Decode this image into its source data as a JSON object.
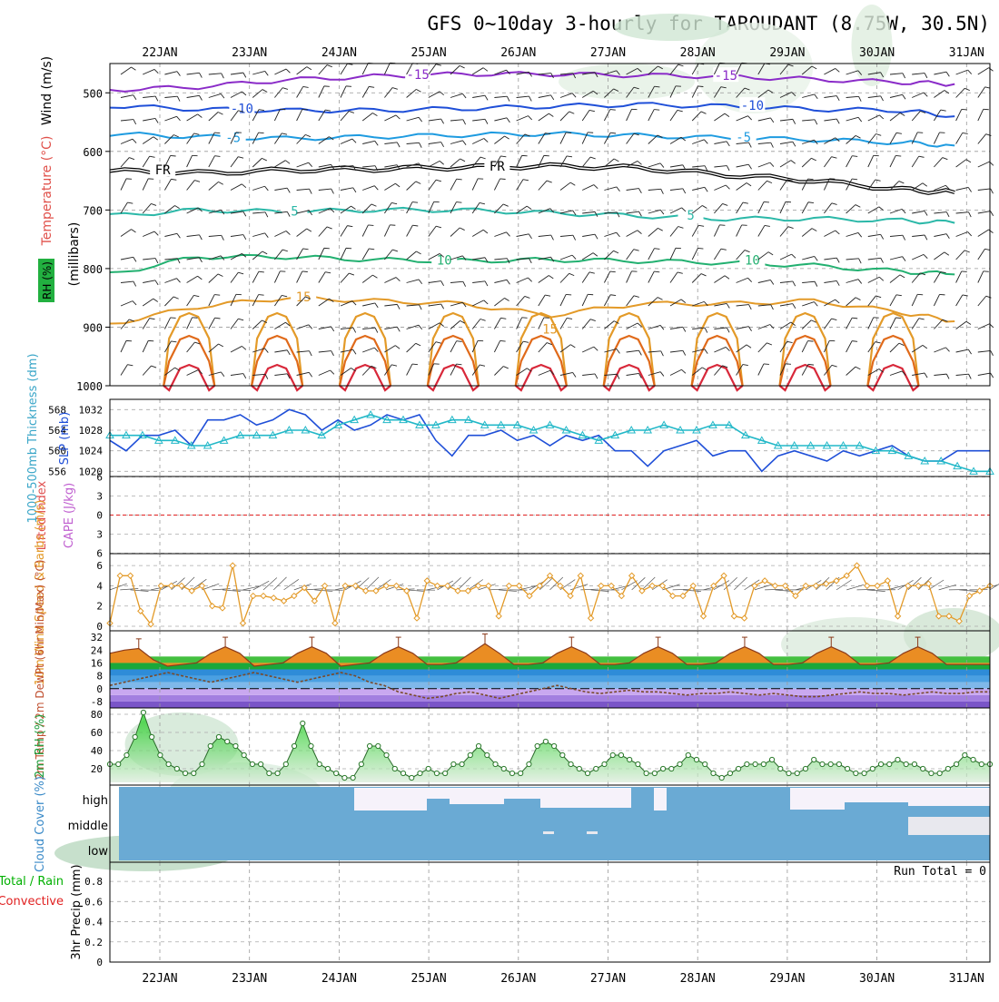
{
  "title": "GFS 0~10day 3-hourly for TAROUDANT (8.75W, 30.5N)",
  "dates": [
    "22JAN",
    "23JAN",
    "24JAN",
    "25JAN",
    "26JAN",
    "27JAN",
    "28JAN",
    "29JAN",
    "30JAN",
    "31JAN"
  ],
  "colors": {
    "purple": "#8a2bc8",
    "blue": "#1f4fd8",
    "lightblue": "#1e9be0",
    "teal": "#2bb8a8",
    "green": "#22b070",
    "orange": "#e39a28",
    "darkorange": "#e06a1a",
    "red": "#d8283a",
    "cyan": "#22b8c8",
    "cloud": "#6aaad4",
    "precip_green": "#00b000",
    "precip_red": "#e02020"
  },
  "chart_data": [
    {
      "panel": "upper-air",
      "type": "line",
      "title": "GFS 0~10day 3-hourly for TAROUDANT (8.75W, 30.5N)",
      "ylabel": "(millibars)",
      "side_labels": [
        "Wind (m/s)",
        "Temperature (°C)",
        "RH (%)"
      ],
      "yticks": [
        500,
        600,
        700,
        800,
        900,
        1000
      ],
      "ylim": [
        1000,
        450
      ],
      "xlim": [
        0,
        10
      ],
      "freezing_label": "FR",
      "isotherms": [
        {
          "label": "-15",
          "color": "purple",
          "label_at": [
            [
              3.5,
              470
            ],
            [
              7.0,
              472
            ]
          ],
          "points": [
            [
              0,
              495
            ],
            [
              1,
              490
            ],
            [
              2,
              478
            ],
            [
              3,
              472
            ],
            [
              4,
              468
            ],
            [
              5,
              468
            ],
            [
              6,
              470
            ],
            [
              7,
              472
            ],
            [
              8,
              477
            ],
            [
              9,
              482
            ],
            [
              9.6,
              485
            ]
          ]
        },
        {
          "label": "-10",
          "color": "blue",
          "label_at": [
            [
              1.5,
              528
            ],
            [
              7.3,
              523
            ]
          ],
          "points": [
            [
              0,
              522
            ],
            [
              1,
              528
            ],
            [
              2,
              530
            ],
            [
              3,
              530
            ],
            [
              4,
              527
            ],
            [
              5,
              523
            ],
            [
              6,
              520
            ],
            [
              7,
              523
            ],
            [
              8,
              528
            ],
            [
              9,
              530
            ],
            [
              9.6,
              540
            ]
          ]
        },
        {
          "label": "-5",
          "color": "lightblue",
          "label_at": [
            [
              1.4,
              578
            ],
            [
              7.2,
              577
            ]
          ],
          "points": [
            [
              0,
              570
            ],
            [
              1,
              575
            ],
            [
              2,
              578
            ],
            [
              3,
              575
            ],
            [
              4,
              572
            ],
            [
              5,
              570
            ],
            [
              6,
              573
            ],
            [
              7,
              577
            ],
            [
              8,
              580
            ],
            [
              9,
              585
            ],
            [
              9.6,
              590
            ]
          ]
        },
        {
          "label": "FR",
          "color": "black",
          "label_at": [
            [
              0.6,
              633
            ],
            [
              4.4,
              627
            ]
          ],
          "points": [
            [
              0,
              633
            ],
            [
              1,
              637
            ],
            [
              2,
              632
            ],
            [
              3,
              630
            ],
            [
              4,
              627
            ],
            [
              5,
              625
            ],
            [
              6,
              628
            ],
            [
              7,
              640
            ],
            [
              8,
              650
            ],
            [
              9,
              665
            ],
            [
              9.6,
              670
            ]
          ]
        },
        {
          "label": "5",
          "color": "teal",
          "label_at": [
            [
              2.1,
              703
            ],
            [
              6.6,
              710
            ]
          ],
          "points": [
            [
              0,
              710
            ],
            [
              1,
              700
            ],
            [
              2,
              703
            ],
            [
              3,
              700
            ],
            [
              4,
              700
            ],
            [
              5,
              705
            ],
            [
              6,
              710
            ],
            [
              7,
              715
            ],
            [
              8,
              715
            ],
            [
              9,
              718
            ],
            [
              9.6,
              722
            ]
          ]
        },
        {
          "label": "10",
          "color": "green",
          "label_at": [
            [
              3.8,
              787
            ],
            [
              7.3,
              787
            ]
          ],
          "points": [
            [
              0,
              810
            ],
            [
              1,
              780
            ],
            [
              2,
              780
            ],
            [
              3,
              785
            ],
            [
              4,
              787
            ],
            [
              5,
              785
            ],
            [
              6,
              787
            ],
            [
              7,
              790
            ],
            [
              8,
              795
            ],
            [
              9,
              805
            ],
            [
              9.6,
              810
            ]
          ]
        },
        {
          "label": "15",
          "color": "orange",
          "label_at": [
            [
              2.2,
              850
            ],
            [
              5.0,
              905
            ]
          ],
          "points": [
            [
              0,
              895
            ],
            [
              1,
              865
            ],
            [
              2,
              850
            ],
            [
              3,
              855
            ],
            [
              4,
              860
            ],
            [
              5,
              880
            ],
            [
              6,
              860
            ],
            [
              7,
              860
            ],
            [
              8,
              855
            ],
            [
              9,
              875
            ],
            [
              9.6,
              890
            ]
          ]
        }
      ],
      "warm_contour_days": [
        0.9,
        1.9,
        2.9,
        3.9,
        4.9,
        5.9,
        6.9,
        7.9,
        8.9,
        9.9
      ],
      "warm_contour_labels": [
        "15",
        "20",
        "25"
      ]
    },
    {
      "panel": "slp-thickness",
      "type": "line",
      "ylabel_left": "1000-500mb Thickness (dm)",
      "ylabel_right": "SLP (mb)",
      "left_ticks": [
        556,
        560,
        564,
        568
      ],
      "right_ticks": [
        1020,
        1024,
        1028,
        1032
      ],
      "ylim_slp": [
        1019,
        1034
      ],
      "series": [
        {
          "name": "SLP (mb)",
          "color": "blue",
          "values": [
            1026,
            1024,
            1027,
            1027,
            1028,
            1025,
            1030,
            1030,
            1031,
            1029,
            1030,
            1032,
            1031,
            1028,
            1030,
            1028,
            1029,
            1031,
            1030,
            1031,
            1026,
            1023,
            1027,
            1027,
            1028,
            1026,
            1027,
            1025,
            1027,
            1026,
            1027,
            1024,
            1024,
            1021,
            1024,
            1025,
            1026,
            1023,
            1024,
            1024,
            1020,
            1023,
            1024,
            1023,
            1022,
            1024,
            1023,
            1024,
            1025,
            1023,
            1022,
            1022,
            1024,
            1024,
            1024
          ]
        },
        {
          "name": "1000-500mb Thickness (dm)",
          "color": "cyan",
          "values": [
            1027,
            1027,
            1027,
            1026,
            1026,
            1025,
            1025,
            1026,
            1027,
            1027,
            1027,
            1028,
            1028,
            1027,
            1029,
            1030,
            1031,
            1030,
            1030,
            1029,
            1029,
            1030,
            1030,
            1029,
            1029,
            1029,
            1028,
            1029,
            1028,
            1027,
            1026,
            1027,
            1028,
            1028,
            1029,
            1028,
            1028,
            1029,
            1029,
            1027,
            1026,
            1025,
            1025,
            1025,
            1025,
            1025,
            1025,
            1024,
            1024,
            1023,
            1022,
            1022,
            1021,
            1020,
            1020
          ]
        }
      ]
    },
    {
      "panel": "stability",
      "type": "line",
      "ylabel_left": "Lifted Index",
      "ylabel_right": "CAPE (J/kg)",
      "yticks": [
        6,
        3,
        0,
        -3,
        -6
      ],
      "lifted_index_zero": 0
    },
    {
      "panel": "wind10m",
      "type": "line",
      "ylabel": "10m Wind Speed & Barbs (m/s)",
      "yticks": [
        0,
        2,
        4,
        6
      ],
      "ylim": [
        0,
        7
      ],
      "series": [
        {
          "name": "10m Wind Speed",
          "color": "orange",
          "values": [
            0.3,
            5,
            5,
            1.5,
            0.2,
            4,
            4,
            4,
            3.5,
            4,
            2,
            1.8,
            6,
            0.3,
            3,
            3,
            2.8,
            2.5,
            3,
            3.8,
            2.5,
            4,
            0.3,
            4,
            4,
            3.5,
            3.5,
            4,
            4,
            3.5,
            0.8,
            4.5,
            4,
            4,
            3.5,
            3.5,
            4,
            4,
            1,
            4,
            4,
            3,
            4,
            5,
            4,
            3,
            5,
            0.8,
            4,
            4,
            3,
            5,
            3.5,
            4,
            4,
            3,
            3,
            4,
            1,
            4,
            5,
            1,
            0.8,
            4,
            4.5,
            4,
            4,
            3,
            4,
            4,
            4.2,
            4.5,
            5,
            6,
            4,
            4,
            4.5,
            1,
            4,
            4,
            4.2,
            1,
            1,
            0.5,
            3,
            3.5,
            4
          ]
        }
      ]
    },
    {
      "panel": "temperature",
      "type": "area",
      "ylabel": "2m Temp / 2m DewPt (6hr Min/Max) (°C)",
      "yticks": [
        -8,
        0,
        8,
        16,
        24,
        32
      ],
      "ylim": [
        -12,
        36
      ],
      "series": [
        {
          "name": "2m Temp",
          "color": "darkorange",
          "values": [
            22,
            24,
            25,
            18,
            14,
            15,
            16,
            22,
            26,
            22,
            14,
            15,
            16,
            22,
            26,
            22,
            14,
            15,
            16,
            22,
            26,
            22,
            15,
            15,
            16,
            22,
            28,
            22,
            15,
            15,
            16,
            22,
            26,
            22,
            15,
            15,
            16,
            22,
            26,
            22,
            15,
            15,
            16,
            22,
            26,
            22,
            15,
            15,
            16,
            22,
            26,
            22,
            15,
            15,
            16,
            22,
            26,
            22,
            15,
            15,
            15,
            15
          ]
        },
        {
          "name": "2m DewPt",
          "color": "brown",
          "values": [
            2,
            4,
            6,
            8,
            10,
            8,
            6,
            4,
            6,
            8,
            10,
            8,
            6,
            4,
            6,
            8,
            10,
            8,
            4,
            2,
            -2,
            -4,
            -6,
            -5,
            -3,
            -2,
            -4,
            -6,
            -4,
            -2,
            0,
            2,
            0,
            -2,
            -3,
            -2,
            -1,
            -2,
            -2,
            -3,
            -4,
            -3,
            -3,
            -2,
            -3,
            -4,
            -3,
            -4,
            -5,
            -5,
            -4,
            -3,
            -2,
            -3,
            -3,
            -4,
            -3,
            -2,
            -3,
            -3,
            -2,
            -2
          ]
        }
      ]
    },
    {
      "panel": "rh2m",
      "type": "area",
      "ylabel": "2m RH (%)",
      "yticks": [
        20,
        40,
        60,
        80
      ],
      "ylim": [
        5,
        85
      ],
      "series": [
        {
          "name": "2m RH",
          "color": "darkgreen",
          "values": [
            25,
            25,
            35,
            55,
            82,
            55,
            35,
            25,
            20,
            15,
            15,
            25,
            45,
            55,
            50,
            45,
            35,
            25,
            25,
            15,
            15,
            25,
            45,
            70,
            45,
            25,
            20,
            15,
            10,
            10,
            25,
            45,
            45,
            35,
            20,
            15,
            10,
            15,
            20,
            15,
            15,
            25,
            25,
            35,
            45,
            35,
            25,
            20,
            15,
            15,
            25,
            45,
            50,
            45,
            35,
            25,
            20,
            15,
            20,
            25,
            35,
            35,
            30,
            25,
            15,
            15,
            20,
            20,
            25,
            35,
            30,
            25,
            15,
            10,
            15,
            20,
            25,
            25,
            25,
            30,
            20,
            15,
            15,
            20,
            30,
            25,
            25,
            25,
            20,
            15,
            15,
            20,
            25,
            25,
            30,
            25,
            25,
            20,
            15,
            15,
            20,
            25,
            35,
            30,
            25,
            25
          ]
        }
      ]
    },
    {
      "panel": "cloud",
      "type": "heatmap",
      "ylabel": "Cloud Cover (%)",
      "levels": [
        "high",
        "middle",
        "low"
      ]
    },
    {
      "panel": "precip",
      "type": "bar",
      "ylabel": "3hr Precip (mm)",
      "side_labels": [
        "Total / Rain",
        "Convective"
      ],
      "yticks": [
        0,
        0.2,
        0.4,
        0.6,
        0.8
      ],
      "ylim": [
        0,
        0.9
      ],
      "annotation": "Run Total = 0",
      "values": []
    }
  ]
}
